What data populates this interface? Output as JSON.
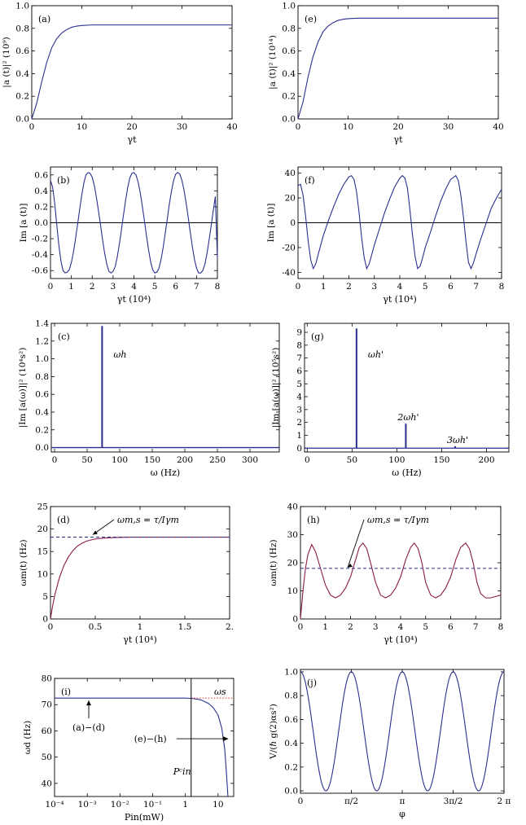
{
  "figure": {
    "colors": {
      "curve": "#2a2f8f",
      "magenta": "#8c1a4a",
      "dotted": "#e02a2a",
      "axis": "#000000"
    }
  },
  "chart_data": [
    {
      "id": "a",
      "panel_label": "(a)",
      "type": "line",
      "xlabel": "γt",
      "ylabel": "|a (t)|² (10⁹)",
      "xlim": [
        0,
        40
      ],
      "ylim": [
        0,
        1.0
      ],
      "xticks": [
        0,
        10,
        20,
        30,
        40
      ],
      "yticks": [
        0.0,
        0.2,
        0.4,
        0.6,
        0.8,
        1.0
      ],
      "yticklabels": [
        "0.0",
        "0.2",
        "0.4",
        "0.6",
        "0.8",
        "1.0"
      ],
      "series": [
        {
          "x": [
            0,
            1,
            2,
            3,
            4,
            5,
            6,
            7,
            8,
            9,
            10,
            12,
            15,
            20,
            30,
            40
          ],
          "y": [
            0,
            0.14,
            0.33,
            0.5,
            0.63,
            0.71,
            0.76,
            0.79,
            0.81,
            0.82,
            0.825,
            0.83,
            0.83,
            0.83,
            0.83,
            0.83
          ]
        }
      ]
    },
    {
      "id": "e",
      "panel_label": "(e)",
      "type": "line",
      "xlabel": "γt",
      "ylabel": "|a (t)|² (10¹⁴)",
      "xlim": [
        0,
        40
      ],
      "ylim": [
        0,
        1.0
      ],
      "xticks": [
        0,
        10,
        20,
        30,
        40
      ],
      "yticks": [
        0.0,
        0.2,
        0.4,
        0.6,
        0.8,
        1.0
      ],
      "yticklabels": [
        "0.0",
        "0.2",
        "0.4",
        "0.6",
        "0.8",
        "1.0"
      ],
      "series": [
        {
          "x": [
            0,
            1,
            2,
            3,
            4,
            5,
            6,
            7,
            8,
            9,
            10,
            12,
            15,
            20,
            30,
            40
          ],
          "y": [
            0,
            0.15,
            0.37,
            0.55,
            0.68,
            0.77,
            0.82,
            0.85,
            0.87,
            0.88,
            0.885,
            0.89,
            0.89,
            0.89,
            0.89,
            0.89
          ]
        }
      ]
    },
    {
      "id": "b",
      "panel_label": "(b)",
      "type": "line",
      "xlabel": "γt (10⁴)",
      "ylabel": "Im [a (t)]",
      "xlim": [
        0,
        8
      ],
      "ylim": [
        -0.7,
        0.7
      ],
      "xticks": [
        0,
        1,
        2,
        3,
        4,
        5,
        6,
        7,
        8
      ],
      "yticks": [
        -0.6,
        -0.4,
        -0.2,
        0.0,
        0.2,
        0.4,
        0.6
      ],
      "yticklabels": [
        "-0.6",
        "-0.4",
        "-0.2",
        "0.0",
        "0.2",
        "0.4",
        "0.6"
      ],
      "zero_line": true,
      "series": [
        {
          "x": [
            0,
            0.1,
            0.2,
            0.3,
            0.4,
            0.5,
            0.6,
            0.7,
            0.8,
            0.9,
            1.0,
            1.1,
            1.2,
            1.3,
            1.4,
            1.5,
            1.6,
            1.7,
            1.8,
            1.9,
            2.0,
            2.1,
            2.2,
            2.3,
            2.4,
            2.5,
            2.6,
            2.7,
            2.8,
            2.9,
            3.0,
            3.1,
            3.2,
            3.3,
            3.4,
            3.5,
            3.6,
            3.7,
            3.8,
            3.9,
            4.0,
            4.1,
            4.2,
            4.3,
            4.4,
            4.5,
            4.6,
            4.7,
            4.8,
            4.9,
            5.0,
            5.1,
            5.2,
            5.3,
            5.4,
            5.5,
            5.6,
            5.7,
            5.8,
            5.9,
            6.0,
            6.1,
            6.2,
            6.3,
            6.4,
            6.5,
            6.6,
            6.7,
            6.8,
            6.9,
            7.0,
            7.1,
            7.2,
            7.3,
            7.4,
            7.5,
            7.6,
            7.7,
            7.8,
            7.9,
            8.0
          ],
          "y": [
            0.53,
            0.45,
            0.25,
            -0.02,
            -0.28,
            -0.48,
            -0.6,
            -0.63,
            -0.62,
            -0.59,
            -0.5,
            -0.37,
            -0.2,
            -0.02,
            0.17,
            0.35,
            0.5,
            0.6,
            0.63,
            0.62,
            0.57,
            0.47,
            0.32,
            0.15,
            -0.03,
            -0.22,
            -0.39,
            -0.52,
            -0.61,
            -0.63,
            -0.61,
            -0.55,
            -0.43,
            -0.27,
            -0.09,
            0.1,
            0.28,
            0.44,
            0.56,
            0.62,
            0.63,
            0.6,
            0.51,
            0.38,
            0.21,
            0.03,
            -0.16,
            -0.34,
            -0.49,
            -0.59,
            -0.63,
            -0.62,
            -0.57,
            -0.46,
            -0.31,
            -0.13,
            0.05,
            0.24,
            0.4,
            0.53,
            0.61,
            0.63,
            0.61,
            0.53,
            0.41,
            0.25,
            0.07,
            -0.12,
            -0.3,
            -0.46,
            -0.57,
            -0.63,
            -0.63,
            -0.6,
            -0.52,
            -0.39,
            -0.22,
            -0.04,
            0.15,
            0.33,
            -0.45
          ]
        }
      ]
    },
    {
      "id": "f",
      "panel_label": "(f)",
      "type": "line",
      "xlabel": "γt (10⁴)",
      "ylabel": "Im [a (t)]",
      "xlim": [
        0,
        8
      ],
      "ylim": [
        -45,
        45
      ],
      "xticks": [
        0,
        1,
        2,
        3,
        4,
        5,
        6,
        7,
        8
      ],
      "yticks": [
        -40,
        -20,
        0,
        20,
        40
      ],
      "yticklabels": [
        "-40",
        "-20",
        "0",
        "20",
        "40"
      ],
      "zero_line": true,
      "series": [
        {
          "x": [
            0,
            0.1,
            0.2,
            0.3,
            0.4,
            0.5,
            0.6,
            0.7,
            0.8,
            1.0,
            1.2,
            1.4,
            1.6,
            1.8,
            2.0,
            2.1,
            2.2,
            2.3,
            2.4,
            2.5,
            2.6,
            2.7,
            2.8,
            3.0,
            3.2,
            3.4,
            3.6,
            3.8,
            4.0,
            4.1,
            4.2,
            4.3,
            4.4,
            4.5,
            4.6,
            4.7,
            4.8,
            4.9,
            5.0,
            5.2,
            5.4,
            5.6,
            5.8,
            6.0,
            6.2,
            6.3,
            6.4,
            6.5,
            6.6,
            6.7,
            6.8,
            6.9,
            7.0,
            7.2,
            7.4,
            7.6,
            7.8,
            8.0
          ],
          "y": [
            30,
            31,
            22,
            5,
            -15,
            -30,
            -37,
            -33,
            -25,
            -10,
            2,
            13,
            23,
            31,
            37,
            38,
            35,
            25,
            8,
            -12,
            -28,
            -37,
            -33,
            -18,
            -5,
            8,
            19,
            29,
            36,
            38,
            36,
            28,
            10,
            -10,
            -27,
            -37,
            -35,
            -28,
            -20,
            -8,
            5,
            17,
            27,
            35,
            38,
            34,
            22,
            5,
            -15,
            -32,
            -37,
            -32,
            -25,
            -12,
            0,
            12,
            20,
            27
          ]
        }
      ]
    },
    {
      "id": "c",
      "panel_label": "(c)",
      "type": "bar",
      "xlabel": "ω (Hz)",
      "ylabel": "|Im [a(ω)]|² (10⁴s²)",
      "xlim": [
        -5,
        345
      ],
      "ylim": [
        -0.05,
        1.4
      ],
      "xticks": [
        0,
        50,
        100,
        150,
        200,
        250,
        300
      ],
      "yticks": [
        0.0,
        0.2,
        0.4,
        0.6,
        0.8,
        1.0,
        1.2,
        1.4
      ],
      "yticklabels": [
        "0.0",
        "0.2",
        "0.4",
        "0.6",
        "0.8",
        "1.0",
        "1.2",
        "1.4"
      ],
      "baseline": 0.0,
      "peaks": [
        {
          "x": 73,
          "y": 1.37,
          "label": "ωh"
        }
      ]
    },
    {
      "id": "g",
      "panel_label": "(g)",
      "type": "bar",
      "xlabel": "ω (Hz)",
      "ylabel": "|Im [a(ω)]|² (10⁵s²)",
      "xlim": [
        -3,
        225
      ],
      "ylim": [
        -0.3,
        9.7
      ],
      "xticks": [
        0,
        50,
        100,
        150,
        200
      ],
      "yticks": [
        0,
        1,
        2,
        3,
        4,
        5,
        6,
        7,
        8,
        9
      ],
      "yticklabels": [
        "0",
        "1",
        "2",
        "3",
        "4",
        "5",
        "6",
        "7",
        "8",
        "9"
      ],
      "baseline": 0.0,
      "peaks": [
        {
          "x": 55,
          "y": 9.3,
          "label": "ωh'"
        },
        {
          "x": 110,
          "y": 1.9,
          "label": "2ωh'"
        },
        {
          "x": 165,
          "y": 0.15,
          "label": "3ωh'"
        }
      ]
    },
    {
      "id": "d",
      "panel_label": "(d)",
      "type": "line",
      "xlabel": "γt (10⁴)",
      "ylabel": "ωm(t) (Hz)",
      "xlim": [
        0,
        2
      ],
      "ylim": [
        0,
        25
      ],
      "xticks": [
        0,
        0.5,
        1,
        1.5,
        2
      ],
      "xticklabels": [
        "0",
        "0.5",
        "1",
        "1.5",
        "2."
      ],
      "yticks": [
        0,
        5,
        10,
        15,
        20,
        25
      ],
      "yticklabels": [
        "0",
        "5",
        "10",
        "15",
        "20",
        "25"
      ],
      "reference_line": {
        "y": 18.2,
        "label": "ωm,s = τ/Iγm"
      },
      "series": [
        {
          "x": [
            0,
            0.02,
            0.05,
            0.1,
            0.15,
            0.2,
            0.25,
            0.3,
            0.35,
            0.4,
            0.5,
            0.6,
            0.7,
            0.8,
            0.9,
            1.0,
            1.2,
            1.5,
            2.0
          ],
          "y": [
            0,
            2.5,
            5.5,
            9.2,
            11.9,
            13.8,
            15.2,
            16.2,
            16.8,
            17.3,
            17.8,
            18.0,
            18.1,
            18.15,
            18.2,
            18.2,
            18.2,
            18.2,
            18.2
          ]
        }
      ]
    },
    {
      "id": "h",
      "panel_label": "(h)",
      "type": "line",
      "xlabel": "γt (10⁴)",
      "ylabel": "ωm(t) (Hz)",
      "xlim": [
        0,
        8
      ],
      "ylim": [
        0,
        40
      ],
      "xticks": [
        0,
        1,
        2,
        3,
        4,
        5,
        6,
        7,
        8
      ],
      "yticks": [
        0,
        10,
        20,
        30,
        40
      ],
      "yticklabels": [
        "0",
        "10",
        "20",
        "30",
        "40"
      ],
      "reference_line": {
        "y": 18,
        "label": "ωm,s = τ/Iγm"
      },
      "series": [
        {
          "x": [
            0,
            0.1,
            0.2,
            0.3,
            0.45,
            0.6,
            0.8,
            1.0,
            1.2,
            1.4,
            1.6,
            1.8,
            2.0,
            2.2,
            2.35,
            2.5,
            2.65,
            2.8,
            3.0,
            3.2,
            3.4,
            3.6,
            3.8,
            4.0,
            4.2,
            4.4,
            4.55,
            4.7,
            4.85,
            5.0,
            5.2,
            5.4,
            5.6,
            5.8,
            6.0,
            6.2,
            6.4,
            6.6,
            6.75,
            6.9,
            7.05,
            7.2,
            7.4,
            7.6,
            7.8,
            8.0
          ],
          "y": [
            0,
            10,
            18,
            23,
            26.5,
            24,
            18,
            12,
            8.5,
            7.5,
            8.5,
            11,
            15,
            21,
            25.5,
            27,
            25,
            20,
            13,
            8.5,
            7.5,
            8.5,
            11,
            15,
            21,
            25.5,
            27,
            25,
            20,
            13,
            8.5,
            7.5,
            8.5,
            11,
            15,
            21,
            25.5,
            27,
            25,
            20,
            13,
            9,
            7.5,
            7.5,
            8,
            8.5
          ]
        }
      ]
    },
    {
      "id": "i",
      "panel_label": "(i)",
      "type": "line",
      "xlabel": "Pin(mW)",
      "ylabel": "ωd (Hz)",
      "xscale": "log",
      "xlim": [
        0.0001,
        30
      ],
      "ylim": [
        35,
        80
      ],
      "xticks": [
        0.0001,
        0.001,
        0.01,
        0.1,
        1,
        10
      ],
      "xticklabels": [
        "10⁻⁴",
        "10⁻³",
        "10⁻²",
        "10⁻¹",
        "1",
        "10"
      ],
      "yticks": [
        40,
        50,
        60,
        70,
        80
      ],
      "yticklabels": [
        "40",
        "50",
        "60",
        "70",
        "80"
      ],
      "vertical_line": {
        "x": 1.5,
        "label": "Pᶜin"
      },
      "reference_line": {
        "y": 72.5,
        "label": "ωs"
      },
      "annotations": [
        "(a)−(d)",
        "(e)−(h)"
      ],
      "series": [
        {
          "x": [
            0.0001,
            0.001,
            0.01,
            0.1,
            1,
            1.5,
            2,
            3,
            5,
            7,
            10,
            13,
            16,
            18,
            20
          ],
          "y": [
            72.5,
            72.5,
            72.5,
            72.5,
            72.5,
            72.4,
            72.2,
            71.8,
            70.5,
            69,
            66,
            61,
            53,
            44,
            35
          ]
        }
      ]
    },
    {
      "id": "j",
      "panel_label": "(j)",
      "type": "line",
      "xlabel": "φ",
      "ylabel": "V/(ℏ g(2)αs²)",
      "xlim": [
        0,
        6.2832
      ],
      "ylim": [
        -0.02,
        1.02
      ],
      "xticks": [
        0,
        1.5708,
        3.1416,
        4.7124,
        6.2832
      ],
      "xticklabels": [
        "0",
        "π/2",
        "π",
        "3π/2",
        "2 π"
      ],
      "yticks": [
        0.0,
        0.2,
        0.4,
        0.6,
        0.8,
        1.0
      ],
      "yticklabels": [
        "0.0",
        "0.2",
        "0.4",
        "0.6",
        "0.8",
        "1.0"
      ],
      "series": [
        {
          "function": "cos²(2φ)"
        }
      ]
    }
  ]
}
